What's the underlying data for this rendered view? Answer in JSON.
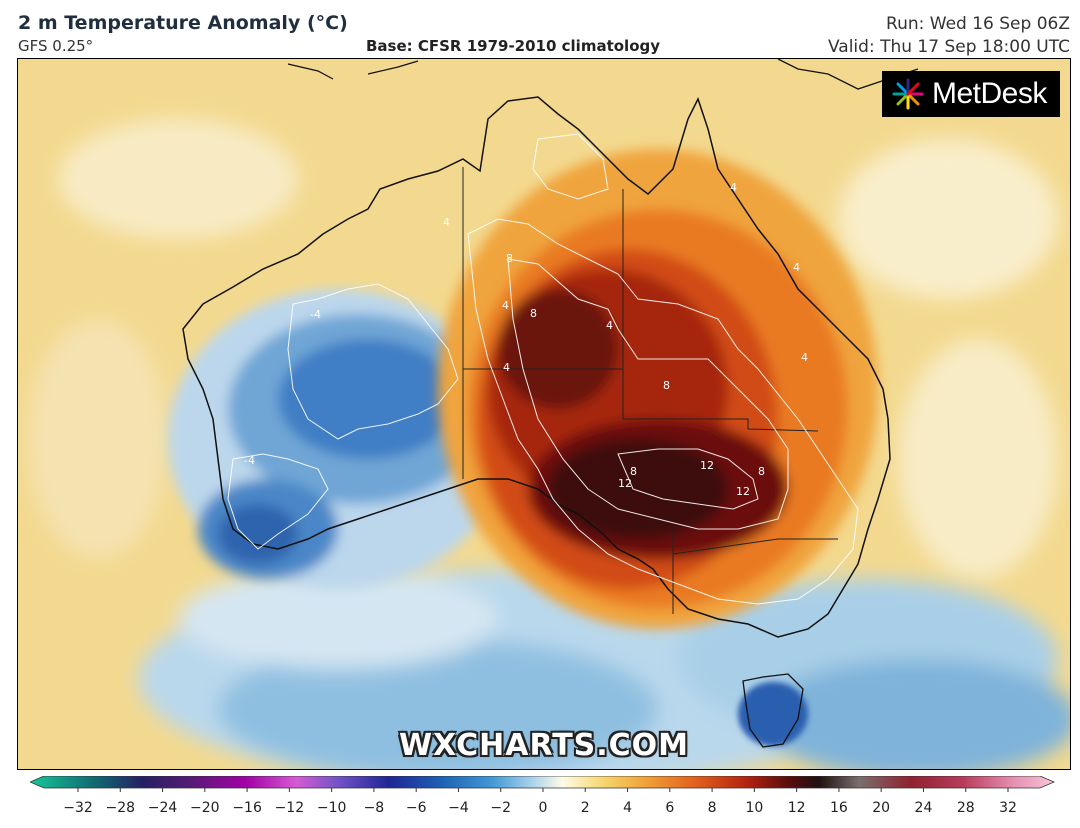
{
  "header": {
    "title": "2 m Temperature Anomaly (°C)",
    "model": "GFS 0.25°",
    "base": "Base: CFSR 1979-2010 climatology",
    "run": "Run: Wed 16 Sep 06Z",
    "valid": "Valid: Thu 17 Sep 18:00 UTC"
  },
  "logo": {
    "text": "MetDesk",
    "icon": "colour-wheel-icon"
  },
  "watermark": "WXCHARTS.COM",
  "colorbar": {
    "ticks": [
      "−32",
      "−28",
      "−24",
      "−20",
      "−16",
      "−12",
      "−10",
      "−8",
      "−6",
      "−4",
      "−2",
      "0",
      "2",
      "4",
      "6",
      "8",
      "10",
      "12",
      "16",
      "20",
      "24",
      "28",
      "32"
    ]
  },
  "contour_labels": [
    "4",
    "8",
    "12",
    "-4"
  ]
}
